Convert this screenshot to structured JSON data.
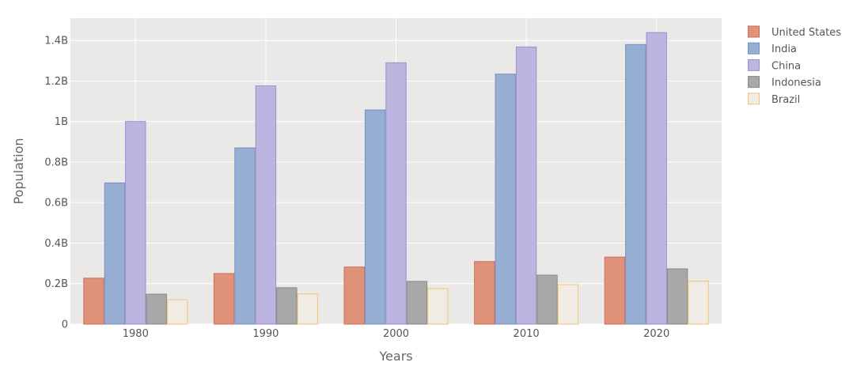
{
  "chart_data": {
    "type": "bar",
    "categories": [
      "1980",
      "1990",
      "2000",
      "2010",
      "2020"
    ],
    "series": [
      {
        "name": "United States",
        "values": [
          0.227,
          0.25,
          0.282,
          0.309,
          0.331
        ],
        "color": "#e0917a",
        "stroke": "#c9705a"
      },
      {
        "name": "India",
        "values": [
          0.697,
          0.87,
          1.057,
          1.234,
          1.38
        ],
        "color": "#97aed3",
        "stroke": "#7a8fbe"
      },
      {
        "name": "China",
        "values": [
          1.0,
          1.176,
          1.29,
          1.368,
          1.439
        ],
        "color": "#bdb5df",
        "stroke": "#9a8fcf"
      },
      {
        "name": "Indonesia",
        "values": [
          0.148,
          0.18,
          0.211,
          0.242,
          0.273
        ],
        "color": "#a8a8a8",
        "stroke": "#888888"
      },
      {
        "name": "Brazil",
        "values": [
          0.121,
          0.149,
          0.175,
          0.195,
          0.212
        ],
        "color": "#f0ebe4",
        "stroke": "#f2c46f"
      }
    ],
    "title": "",
    "xlabel": "Years",
    "ylabel": "Population",
    "ylim": [
      0,
      1.51
    ],
    "yticks": [
      0,
      0.2,
      0.4,
      0.6,
      0.8,
      1.0,
      1.2,
      1.4
    ],
    "ytick_labels": [
      "0",
      "0.2B",
      "0.4B",
      "0.6B",
      "0.8B",
      "1B",
      "1.2B",
      "1.4B"
    ],
    "y_unit": "billions",
    "grid": true,
    "legend_position": "top-right",
    "plot_background": "#ebe9e8",
    "grid_color": "#ffffff"
  }
}
